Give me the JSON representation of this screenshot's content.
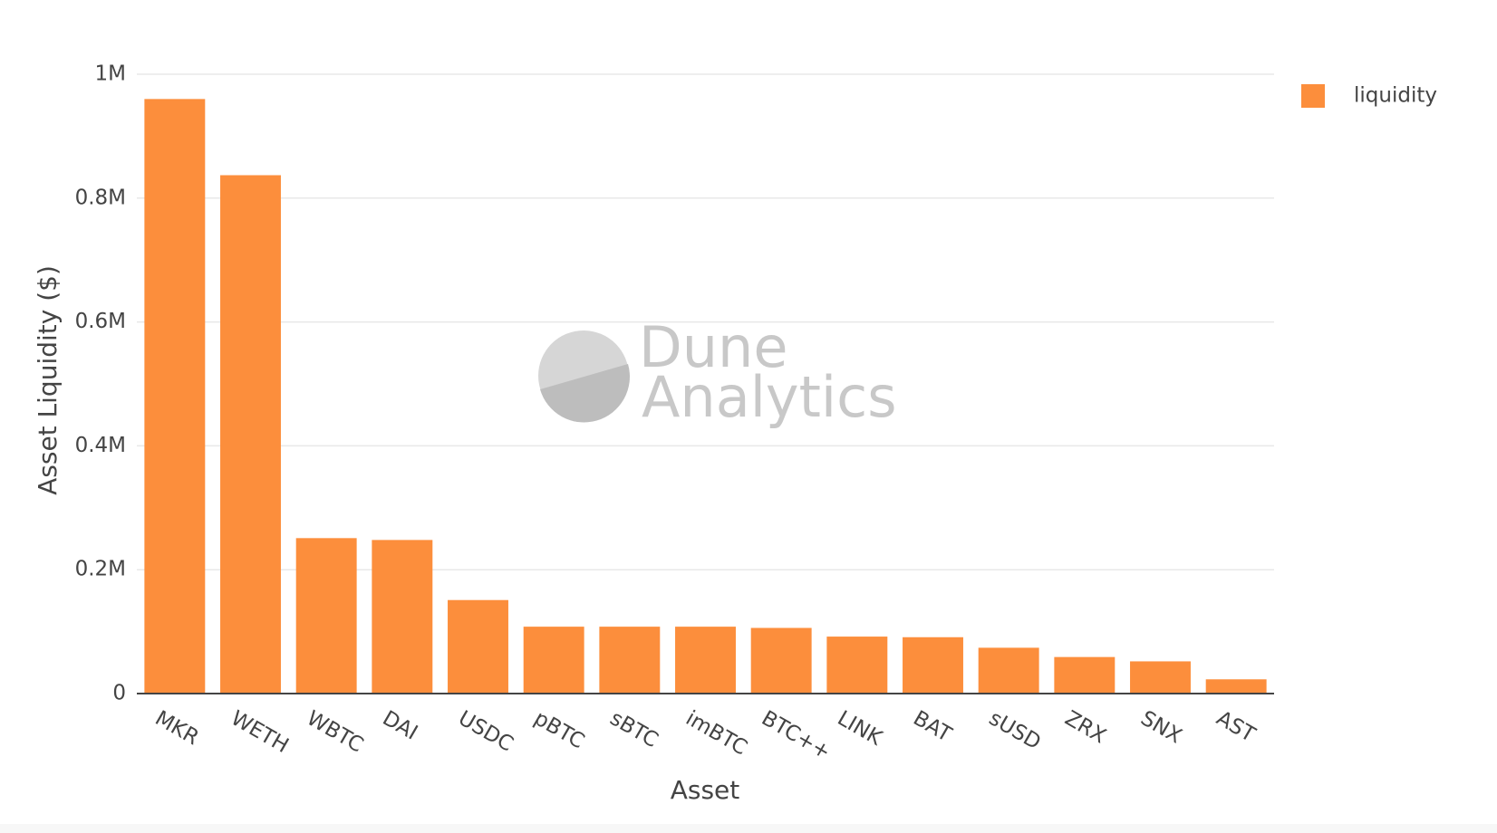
{
  "chart_data": {
    "type": "bar",
    "watermark": [
      "Dune",
      "Analytics"
    ],
    "x_label": "Asset",
    "y_label": "Asset Liquidity ($)",
    "categories": [
      "MKR",
      "WETH",
      "WBTC",
      "DAI",
      "USDC",
      "pBTC",
      "sBTC",
      "imBTC",
      "BTC++",
      "LINK",
      "BAT",
      "sUSD",
      "ZRX",
      "SNX",
      "AST"
    ],
    "series": [
      {
        "name": "liquidity",
        "color": "#fc8e3c",
        "values": [
          960000,
          837000,
          251000,
          248000,
          151000,
          108000,
          108000,
          108000,
          106000,
          92000,
          91000,
          74000,
          59000,
          52000,
          23000
        ]
      }
    ],
    "ylim": [
      0,
      1000000
    ],
    "yticks": [
      0,
      {
        "value": 200000,
        "label": "0.2M"
      },
      {
        "value": 400000,
        "label": "0.4M"
      },
      {
        "value": 600000,
        "label": "0.6M"
      },
      {
        "value": 800000,
        "label": "0.8M"
      },
      {
        "value": 1000000,
        "label": "1M"
      }
    ],
    "grid": true,
    "legend": "top-right"
  }
}
